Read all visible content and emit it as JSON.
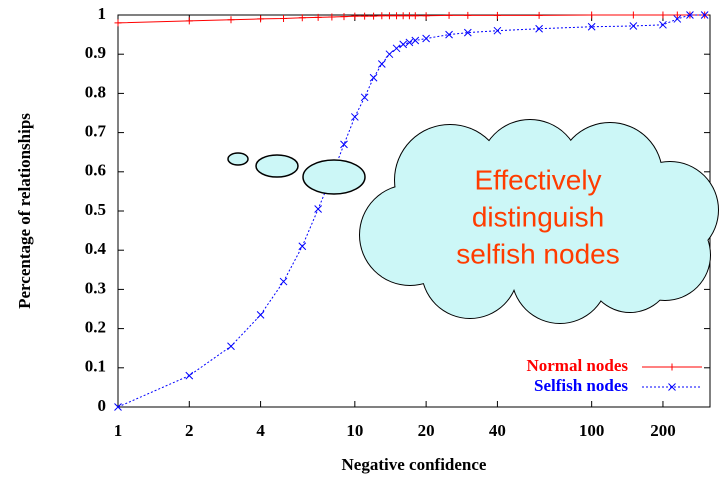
{
  "chart_data": {
    "type": "line",
    "xlabel": "Negative confidence",
    "ylabel": "Percentage of relationships",
    "x": [
      1,
      2,
      3,
      4,
      5,
      6,
      7,
      8,
      9,
      10,
      11,
      12,
      13,
      14,
      15,
      16,
      17,
      18,
      20,
      25,
      30,
      40,
      60,
      100,
      150,
      200,
      230,
      260,
      300
    ],
    "series": [
      {
        "name": "Normal nodes",
        "color": "#ff0000",
        "marker": "+",
        "values": [
          0.98,
          0.985,
          0.988,
          0.99,
          0.991,
          0.993,
          0.994,
          0.995,
          0.996,
          0.997,
          0.997,
          0.997,
          0.998,
          0.998,
          0.998,
          0.998,
          0.998,
          0.998,
          0.998,
          0.999,
          0.999,
          0.999,
          0.999,
          1,
          1,
          1,
          1,
          1,
          1
        ]
      },
      {
        "name": "Selfish nodes",
        "color": "#0000ff",
        "marker": "x",
        "values": [
          0,
          0.08,
          0.155,
          0.235,
          0.32,
          0.41,
          0.505,
          0.59,
          0.67,
          0.74,
          0.79,
          0.84,
          0.875,
          0.9,
          0.915,
          0.925,
          0.93,
          0.935,
          0.94,
          0.95,
          0.955,
          0.96,
          0.965,
          0.97,
          0.972,
          0.975,
          0.99,
          1,
          1
        ]
      }
    ],
    "xscale": "log",
    "xlim": [
      1,
      316
    ],
    "ylim": [
      0,
      1
    ],
    "xticks": [
      1,
      2,
      4,
      10,
      20,
      40,
      100,
      200
    ],
    "yticks": [
      0,
      0.1,
      0.2,
      0.3,
      0.4,
      0.5,
      0.6,
      0.7,
      0.8,
      0.9,
      1
    ],
    "legend": "lower right",
    "annotation": [
      "Effectively",
      "distinguish",
      "selfish nodes"
    ]
  }
}
